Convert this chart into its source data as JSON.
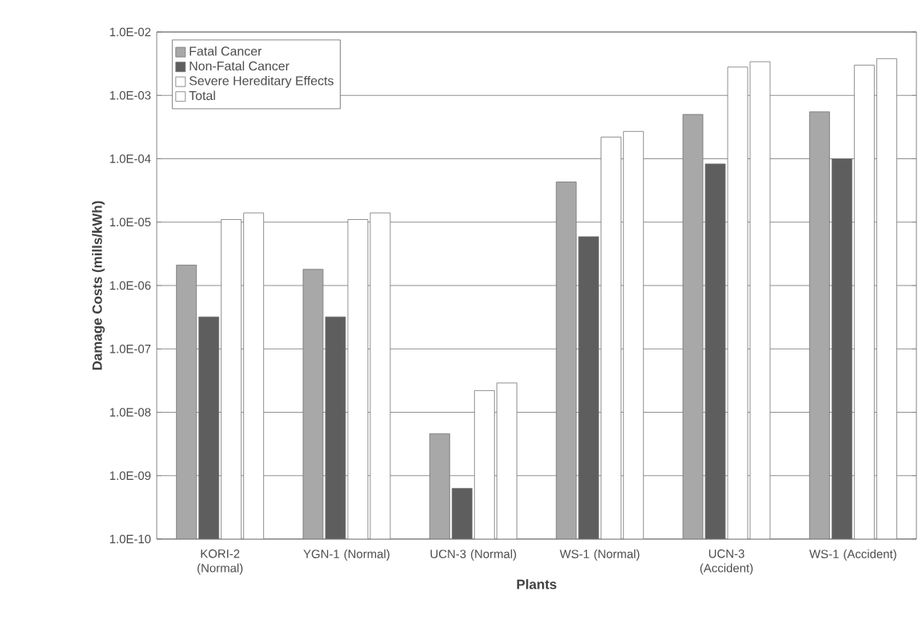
{
  "chart_data": {
    "type": "bar",
    "xlabel": "Plants",
    "ylabel": "Damage Costs (mills/kWh)",
    "categories": [
      "KORI-2 (Normal)",
      "YGN-1 (Normal)",
      "UCN-3 (Normal)",
      "WS-1 (Normal)",
      "UCN-3 (Accident)",
      "WS-1 (Accident)"
    ],
    "series": [
      {
        "name": "Fatal Cancer",
        "color": "#a8a8a8",
        "values": [
          2.1e-06,
          1.8e-06,
          4.6e-09,
          4.3e-05,
          0.0005,
          0.00055
        ]
      },
      {
        "name": "Non-Fatal Cancer",
        "color": "#5e5e5e",
        "values": [
          3.2e-07,
          3.2e-07,
          6.3e-10,
          5.9e-06,
          8.3e-05,
          0.0001
        ]
      },
      {
        "name": "Severe Hereditary Effects",
        "color": "#ffffff",
        "values": [
          1.1e-05,
          1.1e-05,
          2.2e-08,
          0.00022,
          0.0028,
          0.003
        ]
      },
      {
        "name": "Total",
        "color": "#ffffff",
        "values": [
          1.4e-05,
          1.4e-05,
          2.9e-08,
          0.00027,
          0.0034,
          0.0038
        ]
      }
    ],
    "log": "y",
    "ylim": [
      1e-10,
      0.01
    ],
    "yticks": [
      {
        "value": 1e-10,
        "label": "1.0E-10"
      },
      {
        "value": 1e-09,
        "label": "1.0E-09"
      },
      {
        "value": 1e-08,
        "label": "1.0E-08"
      },
      {
        "value": 1e-07,
        "label": "1.0E-07"
      },
      {
        "value": 1e-06,
        "label": "1.0E-06"
      },
      {
        "value": 1e-05,
        "label": "1.0E-05"
      },
      {
        "value": 0.0001,
        "label": "1.0E-04"
      },
      {
        "value": 0.001,
        "label": "1.0E-03"
      },
      {
        "value": 0.01,
        "label": "1.0E-02"
      }
    ],
    "grid": "y",
    "legend": "top left"
  }
}
